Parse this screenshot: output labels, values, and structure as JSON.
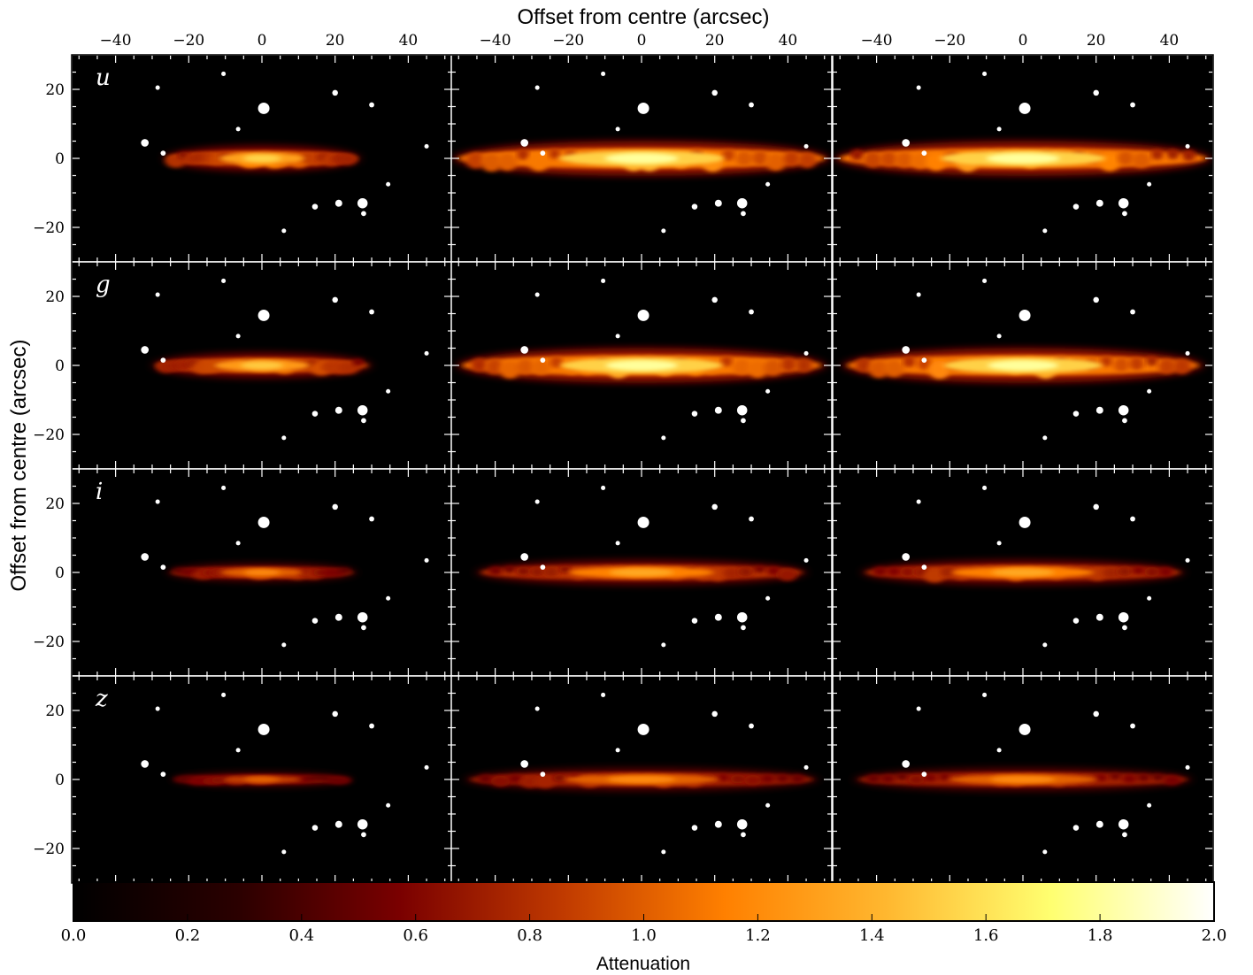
{
  "chart_data": {
    "type": "heatmap",
    "xlabel": "Offset from centre (arcsec)",
    "ylabel": "Offset from centre (arcsec)",
    "colorbar_label": "Attenuation",
    "x_range": [
      -52,
      52
    ],
    "y_range": [
      -30,
      30
    ],
    "x_ticks": [
      -40,
      -20,
      0,
      20,
      40
    ],
    "x_tick_labels": [
      "−40",
      "−20",
      "0",
      "20",
      "40"
    ],
    "y_ticks": [
      20,
      0,
      -20
    ],
    "y_tick_labels": [
      "20",
      "0",
      "−20"
    ],
    "colorbar_range": [
      0.0,
      2.0
    ],
    "colorbar_ticks": [
      0.0,
      0.2,
      0.4,
      0.6,
      0.8,
      1.0,
      1.2,
      1.4,
      1.6,
      1.8,
      2.0
    ],
    "colorbar_tick_labels": [
      "0.0",
      "0.2",
      "0.4",
      "0.6",
      "0.8",
      "1.0",
      "1.2",
      "1.4",
      "1.6",
      "1.8",
      "2.0"
    ],
    "colormap_stops": [
      "#000000",
      "#2a0000",
      "#7a0000",
      "#c03a00",
      "#ff8000",
      "#ffb830",
      "#ffff70",
      "#ffffff"
    ],
    "rows": [
      {
        "band": "u",
        "label": "u",
        "disc": {
          "left": [
            {
              "len": 26,
              "peak": 1.55,
              "thick": 2.2,
              "clumpy": true
            },
            {
              "len": 50,
              "peak": 1.8,
              "thick": 3.0,
              "clumpy": true
            },
            {
              "len": 50,
              "peak": 1.8,
              "thick": 3.0,
              "clumpy": true
            }
          ]
        }
      },
      {
        "band": "g",
        "label": "g",
        "disc": {
          "left": [
            {
              "len": 29,
              "peak": 1.5,
              "thick": 2.2,
              "clumpy": true
            },
            {
              "len": 49,
              "peak": 1.8,
              "thick": 3.0,
              "clumpy": true
            },
            {
              "len": 48,
              "peak": 1.8,
              "thick": 3.0,
              "clumpy": true
            }
          ]
        }
      },
      {
        "band": "i",
        "label": "i",
        "disc": {
          "left": [
            {
              "len": 25,
              "peak": 1.2,
              "thick": 1.6,
              "clumpy": true
            },
            {
              "len": 44,
              "peak": 1.35,
              "thick": 2.2,
              "clumpy": true
            },
            {
              "len": 43,
              "peak": 1.35,
              "thick": 2.2,
              "clumpy": true
            }
          ]
        }
      },
      {
        "band": "z",
        "label": "z",
        "disc": {
          "left": [
            {
              "len": 24,
              "peak": 1.05,
              "thick": 1.3,
              "clumpy": true
            },
            {
              "len": 47,
              "peak": 1.2,
              "thick": 2.0,
              "clumpy": true
            },
            {
              "len": 45,
              "peak": 1.2,
              "thick": 2.0,
              "clumpy": true
            }
          ]
        }
      }
    ],
    "masked_sources_arcsec": [
      {
        "x": -32,
        "y": 4.5,
        "r": 1.2
      },
      {
        "x": -27,
        "y": 1.5,
        "r": 0.8
      },
      {
        "x": -28.5,
        "y": 20.5,
        "r": 0.7
      },
      {
        "x": -10.5,
        "y": 24.5,
        "r": 0.7
      },
      {
        "x": 0.5,
        "y": 14.5,
        "r": 1.8
      },
      {
        "x": -6.5,
        "y": 8.5,
        "r": 0.7
      },
      {
        "x": 20,
        "y": 19,
        "r": 0.9
      },
      {
        "x": 30,
        "y": 15.5,
        "r": 0.8
      },
      {
        "x": 45,
        "y": 3.5,
        "r": 0.7
      },
      {
        "x": 34.5,
        "y": -7.5,
        "r": 0.7
      },
      {
        "x": 27.5,
        "y": -13,
        "r": 1.6
      },
      {
        "x": 27.8,
        "y": -16,
        "r": 0.8
      },
      {
        "x": 21,
        "y": -13,
        "r": 1.1
      },
      {
        "x": 14.5,
        "y": -14,
        "r": 0.9
      },
      {
        "x": 6,
        "y": -21,
        "r": 0.7
      }
    ]
  }
}
